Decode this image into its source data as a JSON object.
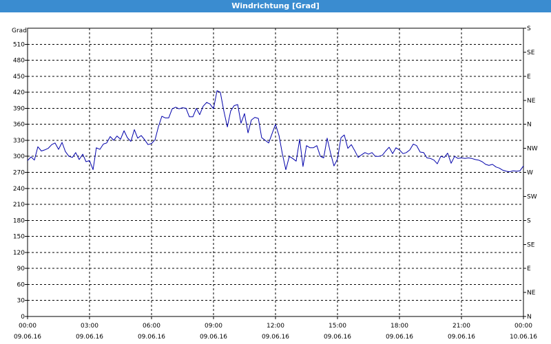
{
  "window": {
    "title": "Windrichtung [Grad]"
  },
  "chart_data": {
    "type": "line",
    "title": "Windrichtung [Grad]",
    "ylabel": "Grad",
    "xlabel": "",
    "ylim": [
      0,
      540
    ],
    "xlim": [
      0,
      24
    ],
    "yticks": [
      0,
      30,
      60,
      90,
      120,
      150,
      180,
      210,
      240,
      270,
      300,
      330,
      360,
      390,
      420,
      450,
      480,
      510
    ],
    "y_right_ticks": [
      {
        "value": 0,
        "label": "N"
      },
      {
        "value": 45,
        "label": "NE"
      },
      {
        "value": 90,
        "label": "E"
      },
      {
        "value": 135,
        "label": "SE"
      },
      {
        "value": 180,
        "label": "S"
      },
      {
        "value": 225,
        "label": "SW"
      },
      {
        "value": 270,
        "label": "W"
      },
      {
        "value": 315,
        "label": "NW"
      },
      {
        "value": 360,
        "label": "N"
      },
      {
        "value": 405,
        "label": "NE"
      },
      {
        "value": 450,
        "label": "E"
      },
      {
        "value": 495,
        "label": "SE"
      },
      {
        "value": 540,
        "label": "S"
      }
    ],
    "xticks": [
      {
        "value": 0,
        "time": "00:00",
        "date": "09.06.16"
      },
      {
        "value": 3,
        "time": "03:00",
        "date": "09.06.16"
      },
      {
        "value": 6,
        "time": "06:00",
        "date": "09.06.16"
      },
      {
        "value": 9,
        "time": "09:00",
        "date": "09.06.16"
      },
      {
        "value": 12,
        "time": "12:00",
        "date": "09.06.16"
      },
      {
        "value": 15,
        "time": "15:00",
        "date": "09.06.16"
      },
      {
        "value": 18,
        "time": "18:00",
        "date": "09.06.16"
      },
      {
        "value": 21,
        "time": "21:00",
        "date": "09.06.16"
      },
      {
        "value": 24,
        "time": "00:00",
        "date": "10.06.16"
      }
    ],
    "grid": true,
    "color": "#0000aa",
    "series": [
      {
        "points": [
          [
            0.0,
            292
          ],
          [
            0.17,
            299
          ],
          [
            0.33,
            293
          ],
          [
            0.5,
            318
          ],
          [
            0.67,
            310
          ],
          [
            0.83,
            312
          ],
          [
            1.0,
            315
          ],
          [
            1.17,
            322
          ],
          [
            1.33,
            325
          ],
          [
            1.5,
            313
          ],
          [
            1.67,
            326
          ],
          [
            1.83,
            309
          ],
          [
            2.0,
            300
          ],
          [
            2.17,
            298
          ],
          [
            2.33,
            307
          ],
          [
            2.5,
            294
          ],
          [
            2.67,
            304
          ],
          [
            2.83,
            290
          ],
          [
            3.0,
            292
          ],
          [
            3.17,
            275
          ],
          [
            3.33,
            316
          ],
          [
            3.5,
            313
          ],
          [
            3.67,
            323
          ],
          [
            3.83,
            325
          ],
          [
            4.0,
            337
          ],
          [
            4.17,
            330
          ],
          [
            4.33,
            338
          ],
          [
            4.5,
            332
          ],
          [
            4.67,
            348
          ],
          [
            4.83,
            335
          ],
          [
            5.0,
            328
          ],
          [
            5.17,
            350
          ],
          [
            5.33,
            334
          ],
          [
            5.5,
            339
          ],
          [
            5.67,
            331
          ],
          [
            5.83,
            322
          ],
          [
            6.0,
            324
          ],
          [
            6.17,
            331
          ],
          [
            6.33,
            355
          ],
          [
            6.5,
            375
          ],
          [
            6.67,
            372
          ],
          [
            6.83,
            372
          ],
          [
            7.0,
            389
          ],
          [
            7.17,
            392
          ],
          [
            7.33,
            389
          ],
          [
            7.5,
            391
          ],
          [
            7.67,
            390
          ],
          [
            7.83,
            374
          ],
          [
            8.0,
            374
          ],
          [
            8.17,
            390
          ],
          [
            8.33,
            378
          ],
          [
            8.5,
            394
          ],
          [
            8.67,
            401
          ],
          [
            8.83,
            398
          ],
          [
            9.0,
            389
          ],
          [
            9.17,
            423
          ],
          [
            9.33,
            420
          ],
          [
            9.5,
            385
          ],
          [
            9.67,
            355
          ],
          [
            9.83,
            385
          ],
          [
            10.0,
            395
          ],
          [
            10.17,
            397
          ],
          [
            10.33,
            362
          ],
          [
            10.5,
            380
          ],
          [
            10.67,
            344
          ],
          [
            10.83,
            368
          ],
          [
            11.0,
            373
          ],
          [
            11.17,
            371
          ],
          [
            11.33,
            335
          ],
          [
            11.5,
            330
          ],
          [
            11.67,
            325
          ],
          [
            11.83,
            342
          ],
          [
            12.0,
            360
          ],
          [
            12.17,
            339
          ],
          [
            12.33,
            305
          ],
          [
            12.5,
            275
          ],
          [
            12.67,
            300
          ],
          [
            12.83,
            296
          ],
          [
            13.0,
            291
          ],
          [
            13.17,
            332
          ],
          [
            13.33,
            281
          ],
          [
            13.5,
            320
          ],
          [
            13.67,
            316
          ],
          [
            13.83,
            316
          ],
          [
            14.0,
            320
          ],
          [
            14.17,
            300
          ],
          [
            14.33,
            297
          ],
          [
            14.5,
            334
          ],
          [
            14.67,
            305
          ],
          [
            14.83,
            282
          ],
          [
            15.0,
            295
          ],
          [
            15.17,
            335
          ],
          [
            15.33,
            340
          ],
          [
            15.5,
            315
          ],
          [
            15.67,
            322
          ],
          [
            15.83,
            311
          ],
          [
            16.0,
            298
          ],
          [
            16.17,
            303
          ],
          [
            16.33,
            307
          ],
          [
            16.5,
            304
          ],
          [
            16.67,
            307
          ],
          [
            16.83,
            300
          ],
          [
            17.0,
            300
          ],
          [
            17.17,
            302
          ],
          [
            17.33,
            310
          ],
          [
            17.5,
            317
          ],
          [
            17.67,
            305
          ],
          [
            17.83,
            316
          ],
          [
            18.0,
            312
          ],
          [
            18.17,
            305
          ],
          [
            18.33,
            307
          ],
          [
            18.5,
            312
          ],
          [
            18.67,
            323
          ],
          [
            18.83,
            320
          ],
          [
            19.0,
            308
          ],
          [
            19.17,
            307
          ],
          [
            19.33,
            297
          ],
          [
            19.5,
            296
          ],
          [
            19.67,
            293
          ],
          [
            19.83,
            286
          ],
          [
            20.0,
            300
          ],
          [
            20.17,
            298
          ],
          [
            20.33,
            306
          ],
          [
            20.5,
            287
          ],
          [
            20.67,
            300
          ],
          [
            20.83,
            296
          ],
          [
            21.0,
            297
          ],
          [
            21.17,
            296
          ],
          [
            21.33,
            297
          ],
          [
            21.5,
            296
          ],
          [
            21.67,
            294
          ],
          [
            21.83,
            293
          ],
          [
            22.0,
            290
          ],
          [
            22.17,
            285
          ],
          [
            22.33,
            283
          ],
          [
            22.5,
            285
          ],
          [
            22.67,
            280
          ],
          [
            22.83,
            278
          ],
          [
            23.0,
            274
          ],
          [
            23.17,
            272
          ],
          [
            23.33,
            271
          ],
          [
            23.5,
            273
          ],
          [
            23.67,
            272
          ],
          [
            23.83,
            273
          ],
          [
            24.0,
            282
          ]
        ]
      }
    ]
  }
}
